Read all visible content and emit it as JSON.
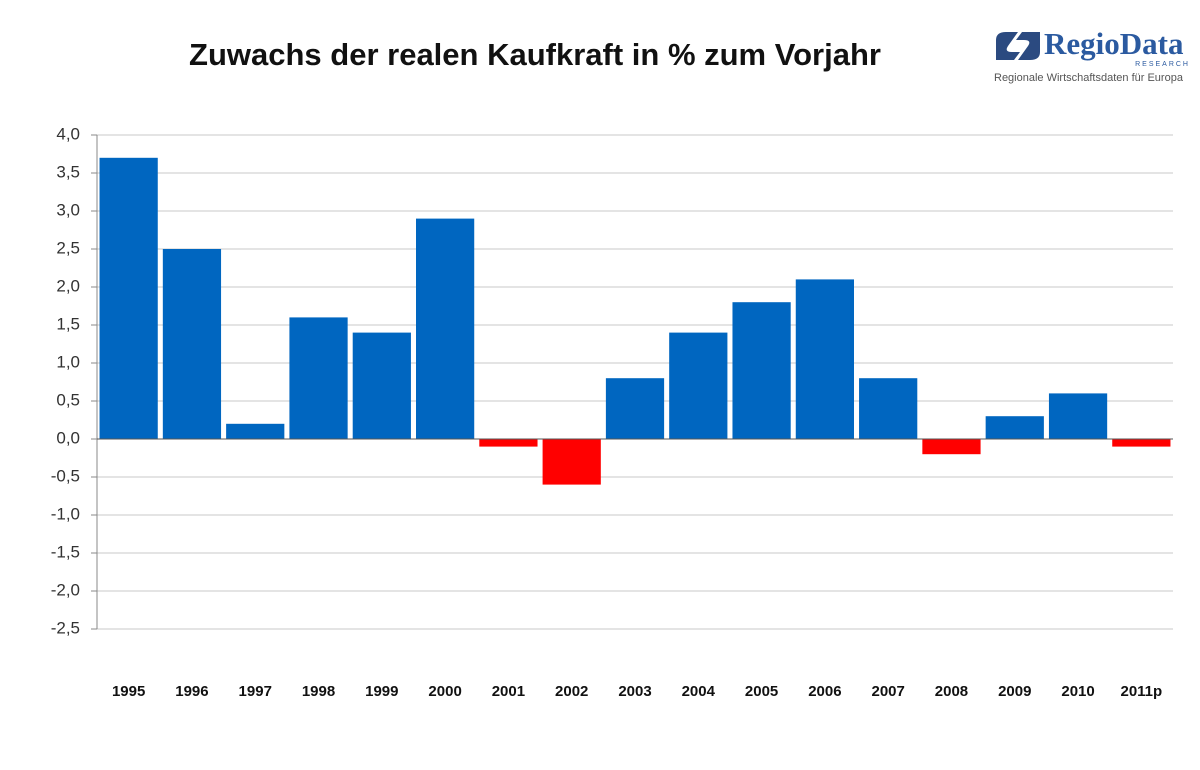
{
  "chart_data": {
    "type": "bar",
    "title": "Zuwachs der realen Kaufkraft in % zum Vorjahr",
    "categories": [
      "1995",
      "1996",
      "1997",
      "1998",
      "1999",
      "2000",
      "2001",
      "2002",
      "2003",
      "2004",
      "2005",
      "2006",
      "2007",
      "2008",
      "2009",
      "2010",
      "2011p"
    ],
    "values": [
      3.7,
      2.5,
      0.2,
      1.6,
      1.4,
      2.9,
      -0.1,
      -0.6,
      0.8,
      1.4,
      1.8,
      2.1,
      0.8,
      -0.2,
      0.3,
      0.6,
      -0.1
    ],
    "colors": [
      "#0066c0",
      "#0066c0",
      "#0066c0",
      "#0066c0",
      "#0066c0",
      "#0066c0",
      "#ff0000",
      "#ff0000",
      "#0066c0",
      "#0066c0",
      "#0066c0",
      "#0066c0",
      "#0066c0",
      "#ff0000",
      "#0066c0",
      "#0066c0",
      "#ff0000"
    ],
    "ylim": [
      -2.5,
      4
    ],
    "yticks": [
      {
        "value": -2.5,
        "label": "-2,5"
      },
      {
        "value": -2,
        "label": "-2,0"
      },
      {
        "value": -1.5,
        "label": "-1,5"
      },
      {
        "value": -1,
        "label": "-1,0"
      },
      {
        "value": -0.5,
        "label": "-0,5"
      },
      {
        "value": 0,
        "label": "0,0"
      },
      {
        "value": 0.5,
        "label": "0,5"
      },
      {
        "value": 1,
        "label": "1,0"
      },
      {
        "value": 1.5,
        "label": "1,5"
      },
      {
        "value": 2,
        "label": "2,0"
      },
      {
        "value": 2.5,
        "label": "2,5"
      },
      {
        "value": 3,
        "label": "3,0"
      },
      {
        "value": 3.5,
        "label": "3,5"
      },
      {
        "value": 4,
        "label": "4,0"
      }
    ],
    "grid": true
  },
  "logo": {
    "name": "RegioData",
    "tag": "RESEARCH",
    "slogan": "Regionale Wirtschaftsdaten für Europa"
  }
}
